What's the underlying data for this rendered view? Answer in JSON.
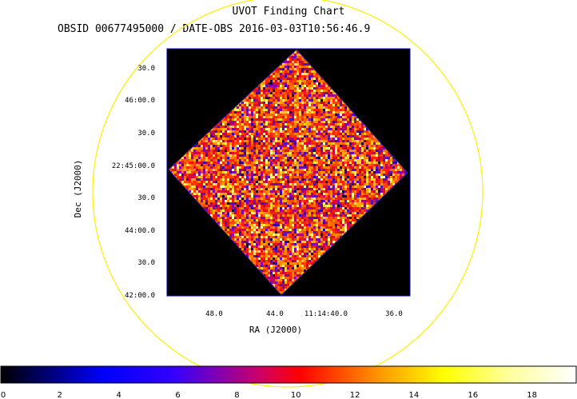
{
  "window": {
    "title": "UVOT Finding Chart",
    "subtitle": "OBSID 00677495000 / DATE-OBS 2016-03-03T10:56:46.9"
  },
  "colors": {
    "background": "#ffffff",
    "image_bg": "#000000",
    "frame": "#0000cc",
    "circle": "#ffee00"
  },
  "chart_data": {
    "type": "heatmap",
    "title": "UVOT Finding Chart",
    "subtitle": "OBSID 00677495000 / DATE-OBS 2016-03-03T10:56:46.9",
    "xlabel": "RA (J2000)",
    "ylabel": "Dec (J2000)",
    "x_ticks": [
      "48.0",
      "44.0",
      "11:14:40.0",
      "36.0"
    ],
    "y_ticks": [
      "30.0",
      "46:00.0",
      "30.0",
      "22:45:00.0",
      "30.0",
      "44:00.0",
      "30.0",
      "42:00.0"
    ],
    "colorbar": {
      "ticks": [
        "0",
        "2",
        "4",
        "6",
        "8",
        "10",
        "12",
        "14",
        "16",
        "18"
      ],
      "range": [
        0,
        19.5
      ],
      "colormap": "heat",
      "stops": [
        "#000000",
        "#0000ff",
        "#ff0000",
        "#ffff00",
        "#ffffff"
      ]
    },
    "grid": false
  }
}
